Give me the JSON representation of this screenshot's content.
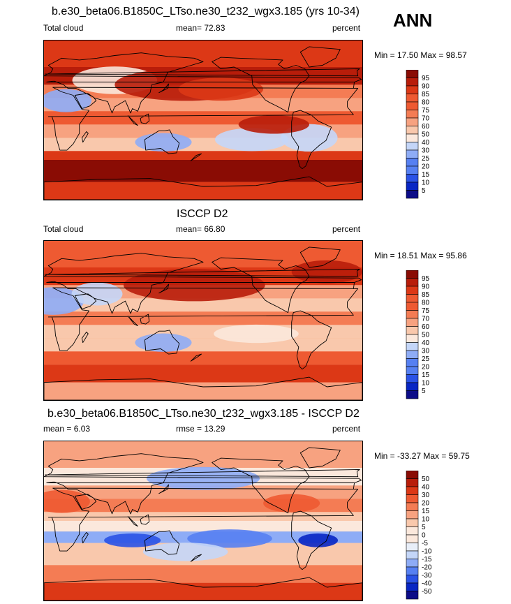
{
  "season": "ANN",
  "colors": {
    "ramp_12": [
      "#0c0c88",
      "#0826c4",
      "#2a52e6",
      "#5680f2",
      "#8eacf6",
      "#c4d6f8",
      "#fbe8dc",
      "#f9c8ac",
      "#f7a280",
      "#f47c54",
      "#ee5a32",
      "#dc3816",
      "#b81d0a",
      "#8a0c04"
    ],
    "diff_ramp": [
      "#0c0c88",
      "#0826c4",
      "#2a52e6",
      "#5680f2",
      "#8eacf6",
      "#c4d6f8",
      "#e8eef8",
      "#fbe8dc",
      "#f9c8ac",
      "#f7a280",
      "#f47c54",
      "#ee5a32",
      "#dc3816",
      "#b81d0a",
      "#8a0c04"
    ]
  },
  "panels": [
    {
      "title": "b.e30_beta06.B1850C_LTso.ne30_t232_wgx3.185 (yrs 10-34)",
      "left_label": "Total cloud",
      "center_label": "mean=  72.83",
      "right_label": "percent",
      "minmax": "Min =  17.50 Max =  98.57",
      "colorbar_labels": [
        "95",
        "90",
        "85",
        "80",
        "75",
        "70",
        "60",
        "50",
        "40",
        "30",
        "25",
        "20",
        "15",
        "10",
        "5"
      ]
    },
    {
      "title": "ISCCP D2",
      "left_label": "Total cloud",
      "center_label": "mean=  66.80",
      "right_label": "percent",
      "minmax": "Min =  18.51 Max =  95.86",
      "colorbar_labels": [
        "95",
        "90",
        "85",
        "80",
        "75",
        "70",
        "60",
        "50",
        "40",
        "30",
        "25",
        "20",
        "15",
        "10",
        "5"
      ]
    },
    {
      "title": "b.e30_beta06.B1850C_LTso.ne30_t232_wgx3.185 - ISCCP D2",
      "left_label": "mean =   6.03",
      "center_label": "rmse =  13.29",
      "right_label": "percent",
      "minmax": "Min = -33.27 Max =  59.75",
      "colorbar_labels": [
        "50",
        "40",
        "30",
        "20",
        "15",
        "10",
        "5",
        "0",
        "-5",
        "-10",
        "-15",
        "-20",
        "-30",
        "-40",
        "-50"
      ]
    }
  ],
  "chart_data": [
    {
      "type": "heatmap",
      "title": "b.e30_beta06.B1850C_LTso.ne30_t232_wgx3.185 (yrs 10-34)",
      "variable": "Total cloud",
      "units": "percent",
      "mean": 72.83,
      "min": 17.5,
      "max": 98.57,
      "contour_levels": [
        5,
        10,
        15,
        20,
        25,
        30,
        40,
        50,
        60,
        70,
        75,
        80,
        85,
        90,
        95
      ]
    },
    {
      "type": "heatmap",
      "title": "ISCCP D2",
      "variable": "Total cloud",
      "units": "percent",
      "mean": 66.8,
      "min": 18.51,
      "max": 95.86,
      "contour_levels": [
        5,
        10,
        15,
        20,
        25,
        30,
        40,
        50,
        60,
        70,
        75,
        80,
        85,
        90,
        95
      ]
    },
    {
      "type": "heatmap",
      "title": "b.e30_beta06.B1850C_LTso.ne30_t232_wgx3.185 - ISCCP D2",
      "units": "percent",
      "mean": 6.03,
      "rmse": 13.29,
      "min": -33.27,
      "max": 59.75,
      "contour_levels": [
        -50,
        -40,
        -30,
        -20,
        -15,
        -10,
        -5,
        0,
        5,
        10,
        15,
        20,
        30,
        40,
        50
      ]
    }
  ]
}
